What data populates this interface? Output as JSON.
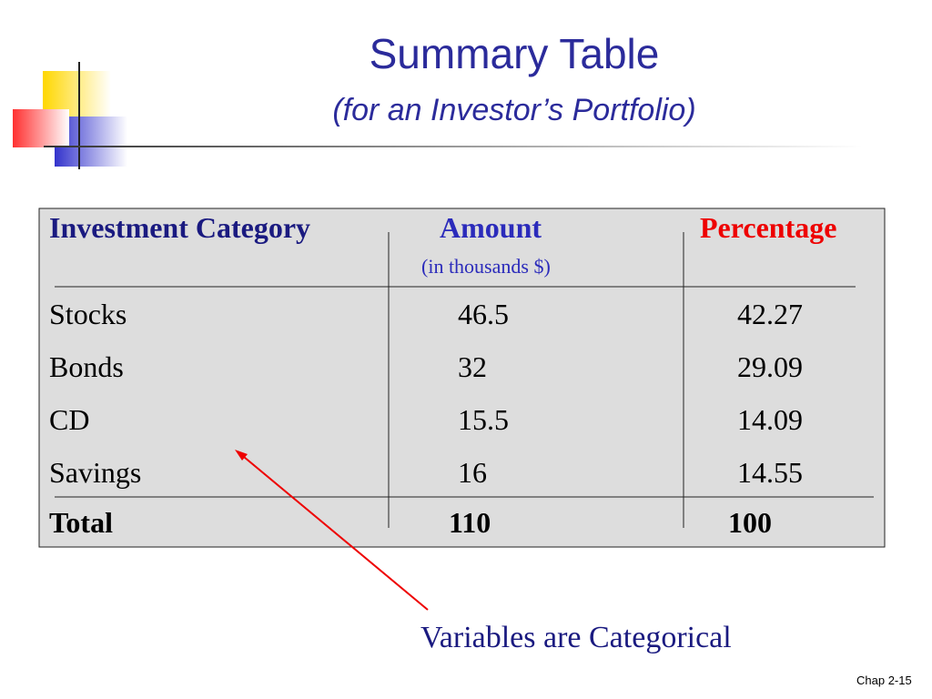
{
  "title": "Summary Table",
  "subtitle": "(for an Investor’s Portfolio)",
  "table": {
    "headers": [
      "Investment Category",
      "Amount",
      "Percentage"
    ],
    "subheader": "(in thousands $)",
    "rows": [
      [
        "Stocks",
        "46.5",
        "42.27"
      ],
      [
        "Bonds",
        "32",
        "29.09"
      ],
      [
        "CD",
        "15.5",
        "14.09"
      ],
      [
        "Savings",
        "16",
        "14.55"
      ]
    ],
    "total": [
      "Total",
      "110",
      "100"
    ]
  },
  "annotation": "Variables are Categorical",
  "footer": "Chap 2-15"
}
